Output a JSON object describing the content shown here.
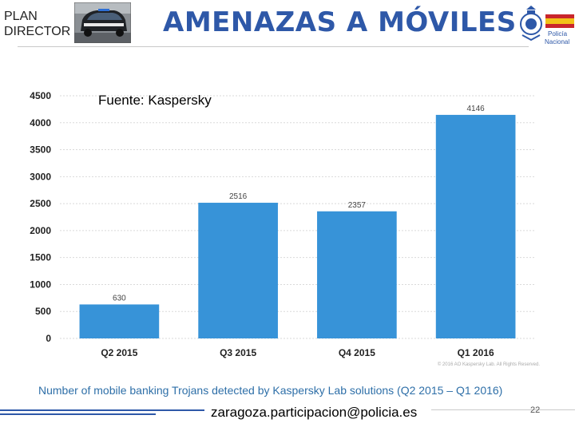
{
  "header": {
    "plan_line1": "PLAN",
    "plan_line2": "DIRECTOR",
    "title": "AMENAZAS A MÓVILES",
    "logo_text_line1": "Policía",
    "logo_text_line2": "Nacional",
    "photo_icon": "police-car-photo",
    "logo_icon": "policia-nacional-emblem"
  },
  "source_note": "Fuente: Kaspersky",
  "chart_data": {
    "type": "bar",
    "categories": [
      "Q2 2015",
      "Q3 2015",
      "Q4 2015",
      "Q1 2016"
    ],
    "values": [
      630,
      2516,
      2357,
      4146
    ],
    "data_labels": [
      "630",
      "2516",
      "2357",
      "4146"
    ],
    "title": "Number of mobile banking Trojans detected by Kaspersky Lab solutions (Q2 2015 – Q1 2016)",
    "xlabel": "",
    "ylabel": "",
    "ylim": [
      0,
      4500
    ],
    "yticks": [
      0,
      500,
      1000,
      1500,
      2000,
      2500,
      3000,
      3500,
      4000,
      4500
    ],
    "grid": true,
    "bar_color": "#3793d8",
    "copyright": "© 2016 AO Kaspersky Lab. All Rights Reserved."
  },
  "footer": {
    "email": "zaragoza.participacion@policia.es",
    "page_number": "22"
  },
  "colors": {
    "title": "#2e58a8",
    "caption": "#2e6fa8",
    "accent_line": "#2e58a8"
  }
}
